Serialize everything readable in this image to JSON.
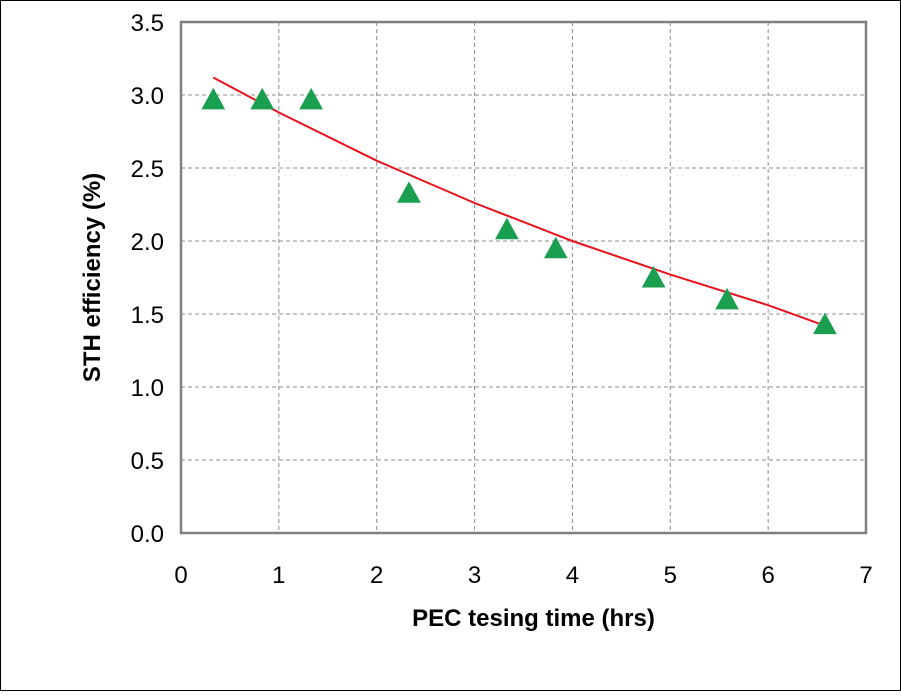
{
  "chart_data": {
    "type": "scatter",
    "title": "",
    "xlabel": "PEC tesing time (hrs)",
    "ylabel": "STH efficiency (%)",
    "xlim": [
      0,
      7
    ],
    "ylim": [
      0,
      3.5
    ],
    "xticks": [
      0,
      1,
      2,
      3,
      4,
      5,
      6,
      7
    ],
    "yticks": [
      0.0,
      0.5,
      1.0,
      1.5,
      2.0,
      2.5,
      3.0,
      3.5
    ],
    "xtick_labels": [
      "0",
      "1",
      "2",
      "3",
      "4",
      "5",
      "6",
      "7"
    ],
    "ytick_labels": [
      "0.0",
      "0.5",
      "1.0",
      "1.5",
      "2.0",
      "2.5",
      "3.0",
      "3.5"
    ],
    "grid": true,
    "legend": "none",
    "series": [
      {
        "marker": "triangle",
        "color": "#1a9e50",
        "x": [
          0.33,
          0.83,
          1.33,
          2.33,
          3.33,
          3.83,
          4.83,
          5.58,
          6.58
        ],
        "y": [
          2.96,
          2.96,
          2.96,
          2.32,
          2.07,
          1.94,
          1.74,
          1.59,
          1.42
        ]
      }
    ],
    "trendline": {
      "type": "exponential",
      "color": "#e8121c",
      "x": [
        0.33,
        1.0,
        2.0,
        3.0,
        4.0,
        5.0,
        6.0,
        6.58
      ],
      "y": [
        3.12,
        2.88,
        2.55,
        2.26,
        2.0,
        1.77,
        1.56,
        1.42
      ]
    }
  }
}
